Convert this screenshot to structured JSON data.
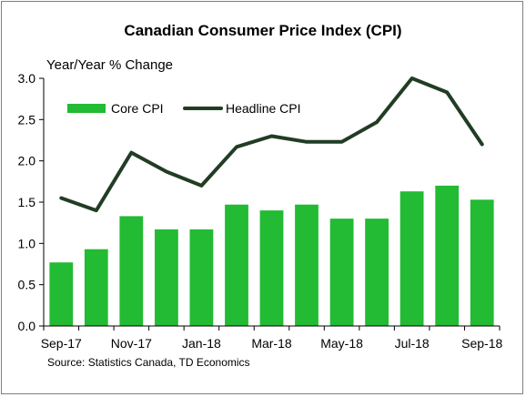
{
  "chart_data": {
    "type": "bar",
    "title": "Canadian Consumer Price Index (CPI)",
    "ylabel": "Year/Year % Change",
    "xlabel": "",
    "source": "Source: Statistics Canada, TD Economics",
    "categories": [
      "Sep-17",
      "Oct-17",
      "Nov-17",
      "Dec-17",
      "Jan-18",
      "Feb-18",
      "Mar-18",
      "Apr-18",
      "May-18",
      "Jun-18",
      "Jul-18",
      "Aug-18",
      "Sep-18"
    ],
    "x_tick_labels": [
      "Sep-17",
      "",
      "Nov-17",
      "",
      "Jan-18",
      "",
      "Mar-18",
      "",
      "May-18",
      "",
      "Jul-18",
      "",
      "Sep-18"
    ],
    "ylim": [
      0,
      3.0
    ],
    "y_ticks": [
      "0.0",
      "0.5",
      "1.0",
      "1.5",
      "2.0",
      "2.5",
      "3.0"
    ],
    "grid": false,
    "legend_position": "top-left",
    "series": [
      {
        "name": "Core CPI",
        "type": "bar",
        "color": "#22bb33",
        "values": [
          0.77,
          0.93,
          1.33,
          1.17,
          1.17,
          1.47,
          1.4,
          1.47,
          1.3,
          1.3,
          1.63,
          1.7,
          1.53
        ]
      },
      {
        "name": "Headline CPI",
        "type": "line",
        "color": "#213d24",
        "values": [
          1.55,
          1.4,
          2.1,
          1.87,
          1.7,
          2.17,
          2.3,
          2.23,
          2.23,
          2.47,
          3.0,
          2.83,
          2.2
        ]
      }
    ]
  }
}
